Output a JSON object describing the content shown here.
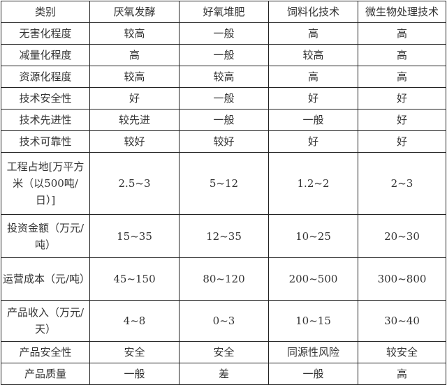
{
  "table": {
    "headers": [
      "类别",
      "厌氧发酵",
      "好氧堆肥",
      "饲料化技术",
      "微生物处理技术"
    ],
    "rows": [
      [
        "无害化程度",
        "较高",
        "一般",
        "高",
        "高"
      ],
      [
        "减量化程度",
        "高",
        "一般",
        "较高",
        "高"
      ],
      [
        "资源化程度",
        "较高",
        "较高",
        "高",
        "高"
      ],
      [
        "技术安全性",
        "好",
        "一般",
        "好",
        "好"
      ],
      [
        "技术先进性",
        "较先进",
        "一般",
        "一般",
        "好"
      ],
      [
        "技术可靠性",
        "较好",
        "较好",
        "好",
        "好"
      ],
      [
        "工程占地[万平方米（以500吨/日）]",
        "2.5~3",
        "5~12",
        "1.2~2",
        "2~3"
      ],
      [
        "投资金额（万元/吨）",
        "15~35",
        "12~35",
        "10~25",
        "20~30"
      ],
      [
        "运营成本（元/吨）",
        "45~150",
        "80~120",
        "200~500",
        "300~800"
      ],
      [
        "产品收入（万元/天）",
        "4~8",
        "0~3",
        "10~15",
        "30~40"
      ],
      [
        "产品安全性",
        "安全",
        "安全",
        "同源性风险",
        "较安全"
      ],
      [
        "产品质量",
        "一般",
        "差",
        "一般",
        "高"
      ]
    ]
  }
}
